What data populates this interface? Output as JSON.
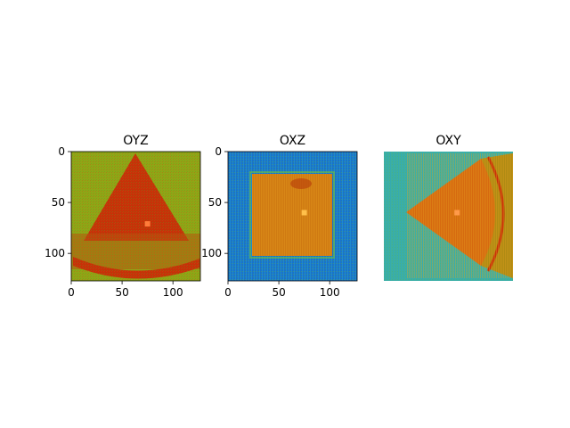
{
  "chart_data": [
    {
      "type": "heatmap",
      "title": "OYZ",
      "xlabel": "",
      "ylabel": "",
      "xlim": [
        0,
        127
      ],
      "ylim": [
        127,
        0
      ],
      "x_ticks": [
        0,
        50,
        100
      ],
      "y_ticks": [
        0,
        50,
        100
      ],
      "pattern": "triangle",
      "marker": {
        "x": 75,
        "y": 71
      },
      "colors": {
        "background": "#8fa616",
        "shape": "#c63208",
        "marker": "#ff7b3a"
      }
    },
    {
      "type": "heatmap",
      "title": "OXZ",
      "xlabel": "",
      "ylabel": "",
      "xlim": [
        0,
        127
      ],
      "ylim": [
        127,
        0
      ],
      "x_ticks": [
        0,
        50,
        100
      ],
      "y_ticks": [
        0,
        50,
        100
      ],
      "pattern": "square",
      "marker": {
        "x": 75,
        "y": 60
      },
      "colors": {
        "background": "#1a73c8",
        "shape": "#cf7a12",
        "marker": "#ffc04a"
      }
    },
    {
      "type": "heatmap",
      "title": "OXY",
      "xlabel": "",
      "ylabel": "",
      "axes_visible": false,
      "pattern": "cone",
      "marker": {
        "x": 72,
        "y": 60
      },
      "colors": {
        "background": "#3eb0a0",
        "shape": "#d66a10",
        "marker": "#ff9a4a"
      }
    }
  ]
}
